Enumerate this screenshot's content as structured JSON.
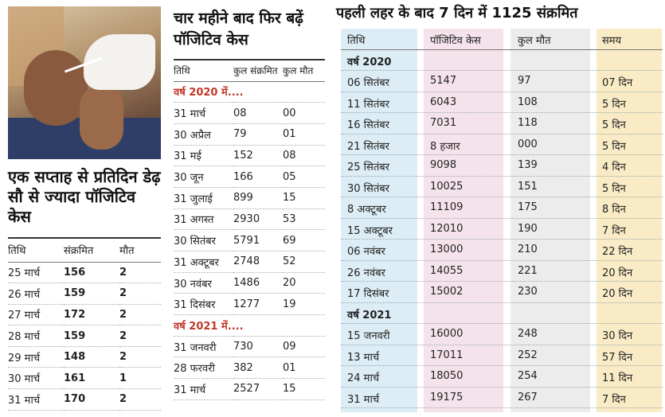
{
  "left": {
    "headline": "एक सप्ताह से प्रतिदिन डेढ़ सौ से ज्यादा पॉजिटिव केस",
    "headers": [
      "तिथि",
      "संक्रमित",
      "मौत"
    ],
    "rows": [
      [
        "25 मार्च",
        "156",
        "2"
      ],
      [
        "26 मार्च",
        "159",
        "2"
      ],
      [
        "27 मार्च",
        "172",
        "2"
      ],
      [
        "28 मार्च",
        "159",
        "2"
      ],
      [
        "29 मार्च",
        "148",
        "2"
      ],
      [
        "30 मार्च",
        "161",
        "1"
      ],
      [
        "31 मार्च",
        "170",
        "2"
      ]
    ]
  },
  "middle": {
    "headline": "चार महीने बाद फिर बढ़ें पॉजिटिव केस",
    "headers": [
      "तिथि",
      "कुल संक्रमित",
      "कुल मौत"
    ],
    "year2020": "वर्ष 2020 में....",
    "rows2020": [
      [
        "31 मार्च",
        "08",
        "00"
      ],
      [
        "30 अप्रैल",
        "79",
        "01"
      ],
      [
        "31 मई",
        "152",
        "08"
      ],
      [
        "30 जून",
        "166",
        "05"
      ],
      [
        "31 जुलाई",
        "899",
        "15"
      ],
      [
        "31 अगस्त",
        "2930",
        "53"
      ],
      [
        "30 सितंबर",
        "5791",
        "69"
      ],
      [
        "31 अक्टूबर",
        "2748",
        "52"
      ],
      [
        "30 नवंबर",
        "1486",
        "20"
      ],
      [
        "31 दिसंबर",
        "1277",
        "19"
      ]
    ],
    "year2021": "वर्ष 2021 में....",
    "rows2021": [
      [
        "31 जनवरी",
        "730",
        "09"
      ],
      [
        "28 फरवरी",
        "382",
        "01"
      ],
      [
        "31 मार्च",
        "2527",
        "15"
      ]
    ]
  },
  "right": {
    "headline": "पहली लहर के बाद  7 दिन में 1125 संक्रमित",
    "headers": [
      "तिथि",
      "पॉजिटिव केस",
      "कुल मौत",
      "समय"
    ],
    "year2020": "वर्ष 2020",
    "rows2020": [
      [
        "06 सितंबर",
        "5147",
        "97",
        "07 दिन"
      ],
      [
        "11 सितंबर",
        "6043",
        "108",
        "5 दिन"
      ],
      [
        "16 सितंबर",
        "7031",
        "118",
        "5 दिन"
      ],
      [
        "21 सितंबर",
        "8 हजार",
        "000",
        "5 दिन"
      ],
      [
        "25 सितंबर",
        "9098",
        "139",
        "4 दिन"
      ],
      [
        "30 सितंबर",
        "10025",
        "151",
        "5 दिन"
      ],
      [
        "8 अक्टूबर",
        "11109",
        "175",
        "8 दिन"
      ],
      [
        "15 अक्टूबर",
        "12010",
        "190",
        "7 दिन"
      ],
      [
        "06 नवंबर",
        "13000",
        "210",
        "22 दिन"
      ],
      [
        "26 नवंबर",
        "14055",
        "221",
        "20 दिन"
      ],
      [
        "17 दिसंबर",
        "15002",
        "230",
        "20 दिन"
      ]
    ],
    "year2021": "वर्ष 2021",
    "rows2021": [
      [
        "15 जनवरी",
        "16000",
        "248",
        "30 दिन"
      ],
      [
        "13 मार्च",
        "17011",
        "252",
        "57 दिन"
      ],
      [
        "24 मार्च",
        "18050",
        "254",
        "11 दिन"
      ],
      [
        "31 मार्च",
        "19175",
        "267",
        "7 दिन"
      ]
    ]
  },
  "colors": {
    "year_label_red": "#c0392b",
    "band_date": "#dcedf5",
    "band_positive": "#f5e3ec",
    "band_deaths": "#ececec",
    "band_time": "#f8ebc5"
  }
}
